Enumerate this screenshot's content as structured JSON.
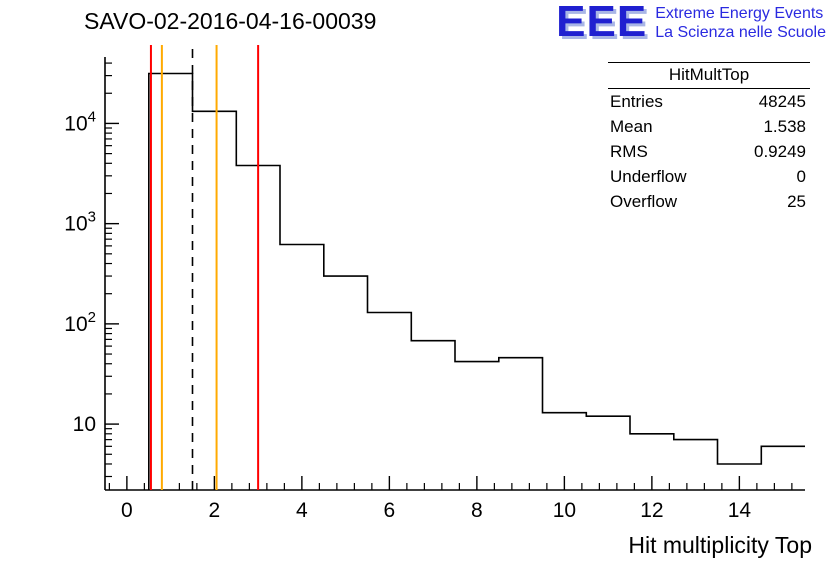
{
  "title": "SAVO-02-2016-04-16-00039",
  "logo": {
    "acronym": "EEE",
    "line1": "Extreme Energy Events",
    "line2": "La Scienza nelle Scuole"
  },
  "stats": {
    "title": "HitMultTop",
    "rows": [
      {
        "label": "Entries",
        "value": "48245"
      },
      {
        "label": "Mean",
        "value": "1.538"
      },
      {
        "label": "RMS",
        "value": "0.9249"
      },
      {
        "label": "Underflow",
        "value": "0"
      },
      {
        "label": "Overflow",
        "value": "25"
      }
    ]
  },
  "chart_data": {
    "type": "bar",
    "style": "histogram-step",
    "title": "SAVO-02-2016-04-16-00039",
    "xlabel": "Hit multiplicity Top",
    "ylabel": "",
    "y_scale": "log",
    "x_range": [
      -0.5,
      15.5
    ],
    "y_range": [
      2.2,
      46000
    ],
    "bin_edges": [
      0.5,
      1.5,
      2.5,
      3.5,
      4.5,
      5.5,
      6.5,
      7.5,
      8.5,
      9.5,
      10.5,
      11.5,
      12.5,
      13.5,
      14.5,
      15.5
    ],
    "bin_centers": [
      1,
      2,
      3,
      4,
      5,
      6,
      7,
      8,
      9,
      10,
      11,
      12,
      13,
      14,
      15
    ],
    "values": [
      31500,
      13200,
      3800,
      620,
      300,
      130,
      68,
      42,
      46,
      13,
      12,
      8,
      7,
      4,
      6
    ],
    "x_ticks_labeled": [
      0,
      2,
      4,
      6,
      8,
      10,
      12,
      14
    ],
    "y_ticks_labeled": [
      10,
      100,
      1000,
      10000
    ],
    "line_color": "#000000",
    "grid": false,
    "legend": "none",
    "vlines": [
      {
        "x": 0.55,
        "color": "#ff0000",
        "style": "solid"
      },
      {
        "x": 0.8,
        "color": "#ffaa00",
        "style": "solid"
      },
      {
        "x": 1.5,
        "color": "#000000",
        "style": "dashed"
      },
      {
        "x": 2.05,
        "color": "#ffaa00",
        "style": "solid"
      },
      {
        "x": 3.0,
        "color": "#ff0000",
        "style": "solid"
      }
    ]
  }
}
